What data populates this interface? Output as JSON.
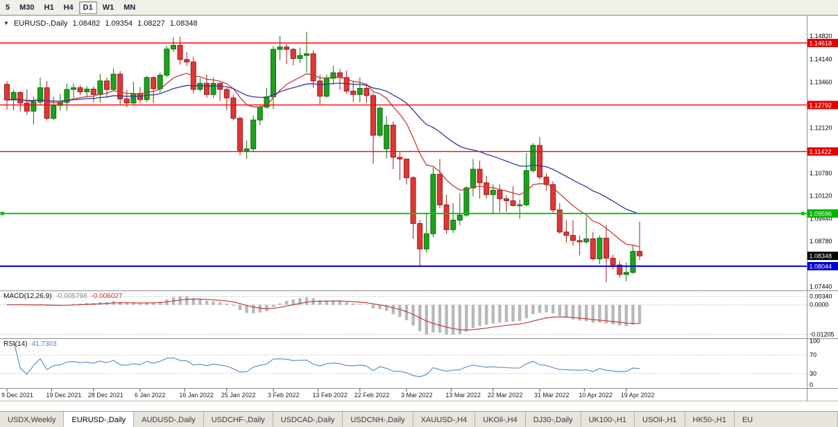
{
  "toolbar": {
    "timeframes": [
      {
        "label": "5",
        "active": false
      },
      {
        "label": "M30",
        "active": false
      },
      {
        "label": "H1",
        "active": false
      },
      {
        "label": "H4",
        "active": false
      },
      {
        "label": "D1",
        "active": true
      },
      {
        "label": "W1",
        "active": false
      },
      {
        "label": "MN",
        "active": false
      }
    ]
  },
  "chart": {
    "header": {
      "collapse_icon": "▼",
      "symbol": "EURUSD-,Daily",
      "open": "1.08482",
      "high": "1.09354",
      "low": "1.08227",
      "close": "1.08348"
    },
    "colors": {
      "up": "#1ea11e",
      "up_stroke": "#0c6e0c",
      "down": "#e03636",
      "down_stroke": "#9c1d1d"
    },
    "moving_averages": [
      {
        "name": "fast-ma-line",
        "period": 13,
        "color": "#c23b3b"
      },
      {
        "name": "slow-ma-line",
        "period": 34,
        "color": "#2d3a96"
      }
    ],
    "hlines": [
      {
        "price": 1.14618,
        "color": "#ff0000",
        "width": 1.4,
        "label": "1.14618",
        "label_bg": "#e00000",
        "handles": false
      },
      {
        "price": 1.12792,
        "color": "#ff0000",
        "width": 1.4,
        "label": "1.12792",
        "label_bg": "#e00000",
        "handles": false
      },
      {
        "price": 1.11422,
        "color": "#ff0000",
        "width": 1.4,
        "label": "1.11422",
        "label_bg": "#e00000",
        "handles": false
      },
      {
        "price": 1.09596,
        "color": "#00cc00",
        "width": 2,
        "label": "1.09596",
        "label_bg": "#00b400",
        "handles": true
      },
      {
        "price": 1.08044,
        "color": "#0000ff",
        "width": 2,
        "label": "1.08044",
        "label_bg": "#0000cc",
        "handles": false
      }
    ],
    "current_price": {
      "label": "1.08348",
      "price": 1.08348,
      "label_bg": "#000000"
    },
    "price_axis": {
      "anchor_price": 1.14618,
      "plain_labels": [
        "1.14820",
        "1.14140",
        "1.13460",
        "1.12120",
        "1.10780",
        "1.10120",
        "1.09440",
        "1.08780",
        "1.07440"
      ]
    },
    "candles": {
      "ohlc": [
        [
          1.134,
          1.135,
          1.1265,
          1.1294
        ],
        [
          1.1294,
          1.1324,
          1.1263,
          1.1316
        ],
        [
          1.1316,
          1.132,
          1.126,
          1.1285
        ],
        [
          1.1285,
          1.1325,
          1.125,
          1.1261
        ],
        [
          1.1261,
          1.1303,
          1.1222,
          1.1288
        ],
        [
          1.1288,
          1.136,
          1.128,
          1.133
        ],
        [
          1.133,
          1.135,
          1.1234,
          1.124
        ],
        [
          1.124,
          1.1304,
          1.1234,
          1.1278
        ],
        [
          1.1278,
          1.1312,
          1.1262,
          1.1287
        ],
        [
          1.1287,
          1.1342,
          1.1262,
          1.1325
        ],
        [
          1.1325,
          1.1343,
          1.13,
          1.133
        ],
        [
          1.133,
          1.1338,
          1.1308,
          1.1318
        ],
        [
          1.1318,
          1.1334,
          1.1301,
          1.1326
        ],
        [
          1.1326,
          1.1335,
          1.1287,
          1.131
        ],
        [
          1.131,
          1.137,
          1.1286,
          1.135
        ],
        [
          1.135,
          1.136,
          1.13,
          1.1325
        ],
        [
          1.1325,
          1.1386,
          1.132,
          1.137
        ],
        [
          1.137,
          1.1379,
          1.1279,
          1.1297
        ],
        [
          1.1297,
          1.1323,
          1.1272,
          1.1285
        ],
        [
          1.1285,
          1.1347,
          1.128,
          1.1313
        ],
        [
          1.1313,
          1.1332,
          1.1285,
          1.1295
        ],
        [
          1.1295,
          1.1365,
          1.1288,
          1.136
        ],
        [
          1.136,
          1.1363,
          1.1285,
          1.1327
        ],
        [
          1.1327,
          1.1375,
          1.1315,
          1.1367
        ],
        [
          1.1367,
          1.1453,
          1.136,
          1.1444
        ],
        [
          1.1444,
          1.1478,
          1.1435,
          1.1455
        ],
        [
          1.1455,
          1.148,
          1.1398,
          1.1413
        ],
        [
          1.1413,
          1.1435,
          1.1394,
          1.1406
        ],
        [
          1.1406,
          1.1422,
          1.1313,
          1.1325
        ],
        [
          1.1325,
          1.1358,
          1.1318,
          1.1343
        ],
        [
          1.1343,
          1.1369,
          1.1301,
          1.131
        ],
        [
          1.131,
          1.136,
          1.13,
          1.1343
        ],
        [
          1.1343,
          1.1345,
          1.1291,
          1.1325
        ],
        [
          1.1325,
          1.133,
          1.1264,
          1.13
        ],
        [
          1.13,
          1.131,
          1.1235,
          1.124
        ],
        [
          1.124,
          1.1245,
          1.1131,
          1.1145
        ],
        [
          1.1145,
          1.1175,
          1.1121,
          1.115
        ],
        [
          1.115,
          1.1248,
          1.114,
          1.1235
        ],
        [
          1.1235,
          1.128,
          1.122,
          1.1273
        ],
        [
          1.1273,
          1.133,
          1.1268,
          1.1303
        ],
        [
          1.1303,
          1.1452,
          1.1267,
          1.1443
        ],
        [
          1.1443,
          1.1483,
          1.1411,
          1.145
        ],
        [
          1.145,
          1.1458,
          1.14,
          1.1443
        ],
        [
          1.1443,
          1.1448,
          1.1396,
          1.1416
        ],
        [
          1.1416,
          1.1448,
          1.1403,
          1.1425
        ],
        [
          1.1425,
          1.1495,
          1.1375,
          1.143
        ],
        [
          1.143,
          1.144,
          1.133,
          1.135
        ],
        [
          1.135,
          1.1369,
          1.1278,
          1.1305
        ],
        [
          1.1305,
          1.1369,
          1.13,
          1.1358
        ],
        [
          1.1358,
          1.1395,
          1.134,
          1.1374
        ],
        [
          1.1374,
          1.1385,
          1.1324,
          1.136
        ],
        [
          1.136,
          1.138,
          1.1312,
          1.132
        ],
        [
          1.132,
          1.135,
          1.1288,
          1.131
        ],
        [
          1.131,
          1.136,
          1.1287,
          1.1328
        ],
        [
          1.1328,
          1.1342,
          1.1285,
          1.1307
        ],
        [
          1.1307,
          1.1315,
          1.1106,
          1.119
        ],
        [
          1.119,
          1.1274,
          1.1185,
          1.127
        ],
        [
          1.115,
          1.1246,
          1.1122,
          1.122
        ],
        [
          1.122,
          1.123,
          1.109,
          1.1125
        ],
        [
          1.1125,
          1.114,
          1.1058,
          1.112
        ],
        [
          1.112,
          1.1121,
          1.1045,
          1.1065
        ],
        [
          1.1065,
          1.107,
          1.0885,
          1.093
        ],
        [
          1.093,
          1.094,
          1.0806,
          1.0855
        ],
        [
          1.0855,
          1.096,
          1.0845,
          1.09
        ],
        [
          1.09,
          1.1095,
          1.089,
          1.1075
        ],
        [
          1.1075,
          1.112,
          1.0975,
          1.0985
        ],
        [
          1.0985,
          1.1015,
          1.09,
          1.0912
        ],
        [
          1.0912,
          1.099,
          1.0902,
          1.094
        ],
        [
          1.094,
          1.102,
          1.0925,
          1.0955
        ],
        [
          1.0955,
          1.104,
          1.095,
          1.1035
        ],
        [
          1.1035,
          1.112,
          1.101,
          1.109
        ],
        [
          1.109,
          1.1115,
          1.1003,
          1.105
        ],
        [
          1.105,
          1.107,
          1.1005,
          1.1015
        ],
        [
          1.1015,
          1.1045,
          1.096,
          1.1028
        ],
        [
          1.1028,
          1.1045,
          1.0963,
          1.1003
        ],
        [
          1.1003,
          1.1014,
          1.0965,
          1.0997
        ],
        [
          1.0997,
          1.104,
          1.098,
          1.0983
        ],
        [
          1.0983,
          1.1,
          1.0944,
          1.0985
        ],
        [
          1.0985,
          1.1137,
          1.098,
          1.1086
        ],
        [
          1.1086,
          1.1167,
          1.108,
          1.116
        ],
        [
          1.116,
          1.1185,
          1.106,
          1.1067
        ],
        [
          1.1067,
          1.1077,
          1.1027,
          1.1045
        ],
        [
          1.1045,
          1.1055,
          1.096,
          1.097
        ],
        [
          1.097,
          1.099,
          1.09,
          1.0905
        ],
        [
          1.0905,
          1.094,
          1.0874,
          1.0895
        ],
        [
          1.0895,
          1.094,
          1.0865,
          1.088
        ],
        [
          1.088,
          1.0895,
          1.0836,
          1.0876
        ],
        [
          1.0876,
          1.095,
          1.087,
          1.0885
        ],
        [
          1.0885,
          1.0905,
          1.0821,
          1.0826
        ],
        [
          1.0826,
          1.0895,
          1.081,
          1.0887
        ],
        [
          1.0887,
          1.0925,
          1.0757,
          1.0828
        ],
        [
          1.0828,
          1.0838,
          1.0795,
          1.0808
        ],
        [
          1.0808,
          1.082,
          1.077,
          1.078
        ],
        [
          1.078,
          1.0815,
          1.076,
          1.0786
        ],
        [
          1.0786,
          1.0868,
          1.0782,
          1.0848
        ],
        [
          1.08482,
          1.09354,
          1.08227,
          1.08348
        ]
      ]
    },
    "time_axis": [
      {
        "label": "9 Dec 2021",
        "index": 0
      },
      {
        "label": "19 Dec 2021",
        "index": 6.7
      },
      {
        "label": "28 Dec 2021",
        "index": 13
      },
      {
        "label": "6 Jan 2022",
        "index": 20
      },
      {
        "label": "16 Jan 2022",
        "index": 26.7
      },
      {
        "label": "25 Jan 2022",
        "index": 33
      },
      {
        "label": "3 Feb 2022",
        "index": 40
      },
      {
        "label": "13 Feb 2022",
        "index": 46.7
      },
      {
        "label": "22 Feb 2022",
        "index": 53
      },
      {
        "label": "3 Mar 2022",
        "index": 60
      },
      {
        "label": "13 Mar 2022",
        "index": 66.7
      },
      {
        "label": "22 Mar 2022",
        "index": 73
      },
      {
        "label": "31 Mar 2022",
        "index": 80
      },
      {
        "label": "10 Apr 2022",
        "index": 86.7
      },
      {
        "label": "19 Apr 2022",
        "index": 93
      }
    ]
  },
  "macd": {
    "title": "MACD(12,26,9)",
    "value_main": "-0.005798",
    "value_signal": "-0.006027",
    "fast": 12,
    "slow": 26,
    "signal": 9,
    "axis_labels": [
      "0.00340",
      "0.0000",
      "-0.01205"
    ],
    "histogram_color": "#b8b8b8",
    "signal_color": "#c23b3b"
  },
  "rsi": {
    "title": "RSI(14)",
    "value": "41.7303",
    "period": 14,
    "axis_labels": [
      "100",
      "70",
      "30",
      "0"
    ],
    "levels": [
      70,
      30
    ],
    "line_color": "#4f86c6"
  },
  "tabs": [
    {
      "label": "USDX,Weekly",
      "active": false
    },
    {
      "label": "EURUSD-,Daily",
      "active": true
    },
    {
      "label": "AUDUSD-,Daily",
      "active": false
    },
    {
      "label": "USDCHF-,Daily",
      "active": false
    },
    {
      "label": "USDCAD-,Daily",
      "active": false
    },
    {
      "label": "USDCNH-,Daily",
      "active": false
    },
    {
      "label": "XAUUSD-,H4",
      "active": false
    },
    {
      "label": "UKOil-,H4",
      "active": false
    },
    {
      "label": "DJ30-,Daily",
      "active": false
    },
    {
      "label": "UK100-,H1",
      "active": false
    },
    {
      "label": "USOil-,H1",
      "active": false
    },
    {
      "label": "HK50-,H1",
      "active": false
    },
    {
      "label": "EU",
      "active": false
    }
  ]
}
